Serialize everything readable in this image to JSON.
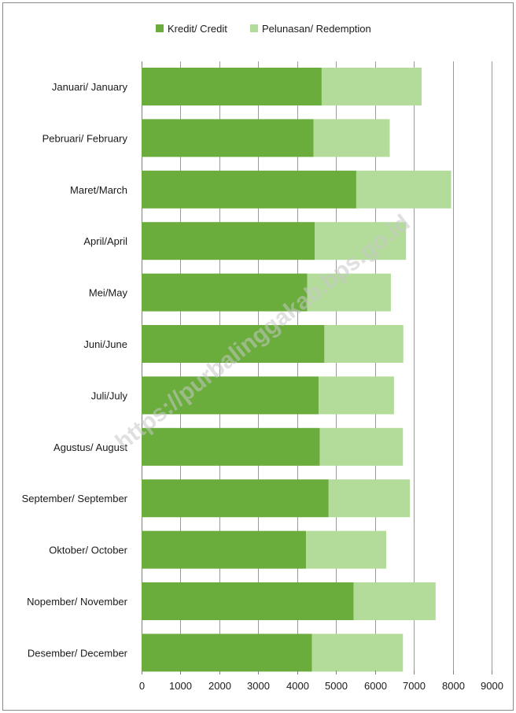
{
  "chart_data": {
    "type": "bar",
    "orientation": "horizontal",
    "stacked": true,
    "categories": [
      "Januari/ January",
      "Pebruari/ February",
      "Maret/March",
      "April/April",
      "Mei/May",
      "Juni/June",
      "Juli/July",
      "Agustus/ August",
      "September/ September",
      "Oktober/ October",
      "Nopember/ November",
      "Desember/ December"
    ],
    "series": [
      {
        "name": "Kredit/ Credit",
        "color": "#6aad3d",
        "values": [
          4630,
          4420,
          5520,
          4450,
          4260,
          4700,
          4550,
          4580,
          4810,
          4230,
          5450,
          4380
        ]
      },
      {
        "name": "Pelunasan/ Redemption",
        "color": "#b3dc9a",
        "values": [
          2570,
          1960,
          2440,
          2350,
          2150,
          2030,
          1940,
          2140,
          2090,
          2060,
          2110,
          2340
        ]
      }
    ],
    "xlim": [
      0,
      9000
    ],
    "xticks": [
      0,
      1000,
      2000,
      3000,
      4000,
      5000,
      6000,
      7000,
      8000,
      9000
    ],
    "grid": "vertical",
    "legend_position": "top-center",
    "watermark": "https://purbalinggakab.bps.go.id"
  }
}
